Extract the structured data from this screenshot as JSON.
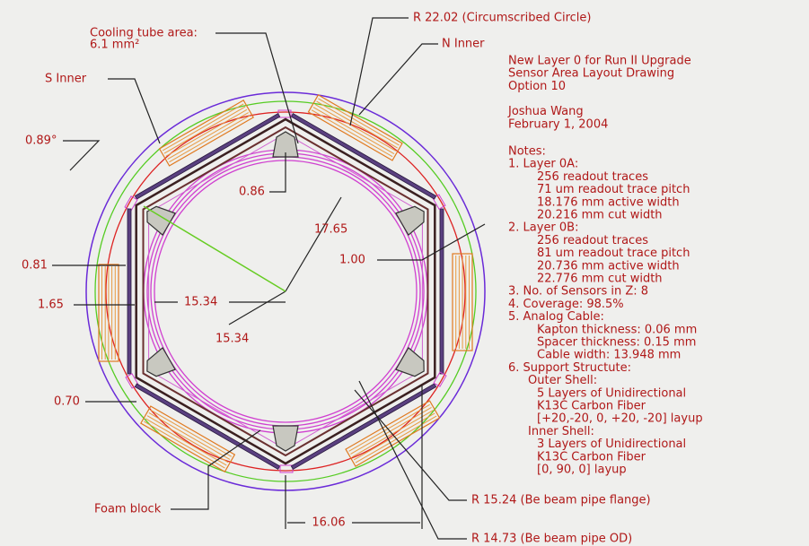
{
  "drawing": {
    "labels": {
      "cooling_tube": [
        "Cooling tube area:",
        "6.1 mm²"
      ],
      "circumscribed": "R 22.02 (Circumscribed Circle)",
      "n_inner": "N Inner",
      "s_inner": "S Inner",
      "angle": "0.89°",
      "gap_top": "0.86",
      "radius_outer": "17.65",
      "gap_right": "1.00",
      "gap_left_a": "0.81",
      "gap_left_b": "1.65",
      "radius_a": "15.34",
      "radius_b": "15.34",
      "gap_bottom": "0.70",
      "foam": "Foam block",
      "width": "16.06",
      "flange": "R 15.24 (Be beam pipe flange)",
      "pipe_od": "R 14.73 (Be beam pipe OD)"
    },
    "title_block": {
      "title": [
        "New Layer 0 for Run II Upgrade",
        "Sensor Area Layout Drawing",
        "Option 10"
      ],
      "author": [
        "Joshua Wang",
        "February 1, 2004"
      ],
      "notes_heading": "Notes:",
      "notes": [
        {
          "heading": "1. Layer 0A:",
          "lines": [
            "256 readout traces",
            "71 um readout trace pitch",
            "18.176 mm active width",
            "20.216 mm cut width"
          ]
        },
        {
          "heading": "2. Layer 0B:",
          "lines": [
            "256 readout traces",
            "81 um readout trace pitch",
            "20.736 mm active width",
            "22.776 mm cut width"
          ]
        },
        {
          "heading": "3. No. of Sensors in Z: 8",
          "lines": []
        },
        {
          "heading": "4. Coverage: 98.5%",
          "lines": []
        },
        {
          "heading": "5. Analog Cable:",
          "lines": [
            "Kapton thickness: 0.06 mm",
            "Spacer thickness: 0.15 mm",
            "Cable width: 13.948 mm"
          ]
        },
        {
          "heading": "6. Support Structute:",
          "lines": [
            "Outer Shell:",
            "5 Layers of Unidirectional",
            "K13C Carbon Fiber",
            "[+20,-20, 0, +20, -20] layup",
            "Inner Shell:",
            "3 Layers of Unidirectional",
            "K13C Carbon Fiber",
            "[0, 90, 0] layup"
          ]
        }
      ]
    }
  }
}
